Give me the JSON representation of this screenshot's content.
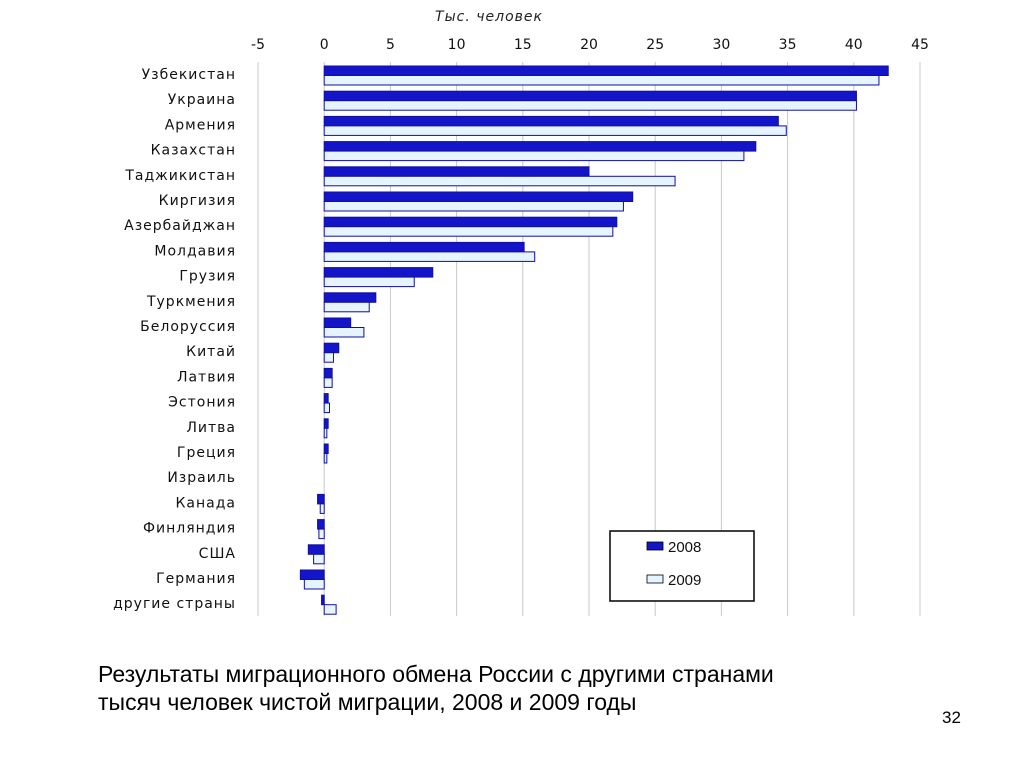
{
  "chart_data": {
    "type": "bar",
    "orientation": "horizontal",
    "axis_title": "Тыс. человек",
    "xlim": [
      -5,
      45
    ],
    "xticks": [
      "-5",
      "0",
      "5",
      "10",
      "15",
      "20",
      "25",
      "30",
      "35",
      "40",
      "45"
    ],
    "grid": true,
    "categories": [
      "Узбекистан",
      "Украина",
      "Армения",
      "Казахстан",
      "Таджикистан",
      "Киргизия",
      "Азербайджан",
      "Молдавия",
      "Грузия",
      "Туркмения",
      "Белоруссия",
      "Китай",
      "Латвия",
      "Эстония",
      "Литва",
      "Греция",
      "Израиль",
      "Канада",
      "Финляндия",
      "США",
      "Германия",
      "другие страны"
    ],
    "series": [
      {
        "name": "2008",
        "color": "#1414c8",
        "values": [
          42.6,
          40.2,
          34.3,
          32.6,
          20.0,
          23.3,
          22.1,
          15.1,
          8.2,
          3.9,
          2.0,
          1.1,
          0.6,
          0.3,
          0.3,
          0.3,
          0.0,
          -0.5,
          -0.5,
          -1.2,
          -1.8,
          -0.2
        ]
      },
      {
        "name": "2009",
        "color": "#e6f4ff",
        "values": [
          41.9,
          40.2,
          34.9,
          31.7,
          26.5,
          22.6,
          21.8,
          15.9,
          6.8,
          3.4,
          3.0,
          0.7,
          0.6,
          0.4,
          0.2,
          0.2,
          0.0,
          -0.3,
          -0.4,
          -0.8,
          -1.5,
          0.9
        ]
      }
    ],
    "legend_position": "bottom-right"
  },
  "caption": {
    "line1": "Результаты миграционного обмена России с другими странами",
    "line2": "тысяч человек чистой миграции, 2008 и 2009 годы"
  },
  "page_number": "32"
}
